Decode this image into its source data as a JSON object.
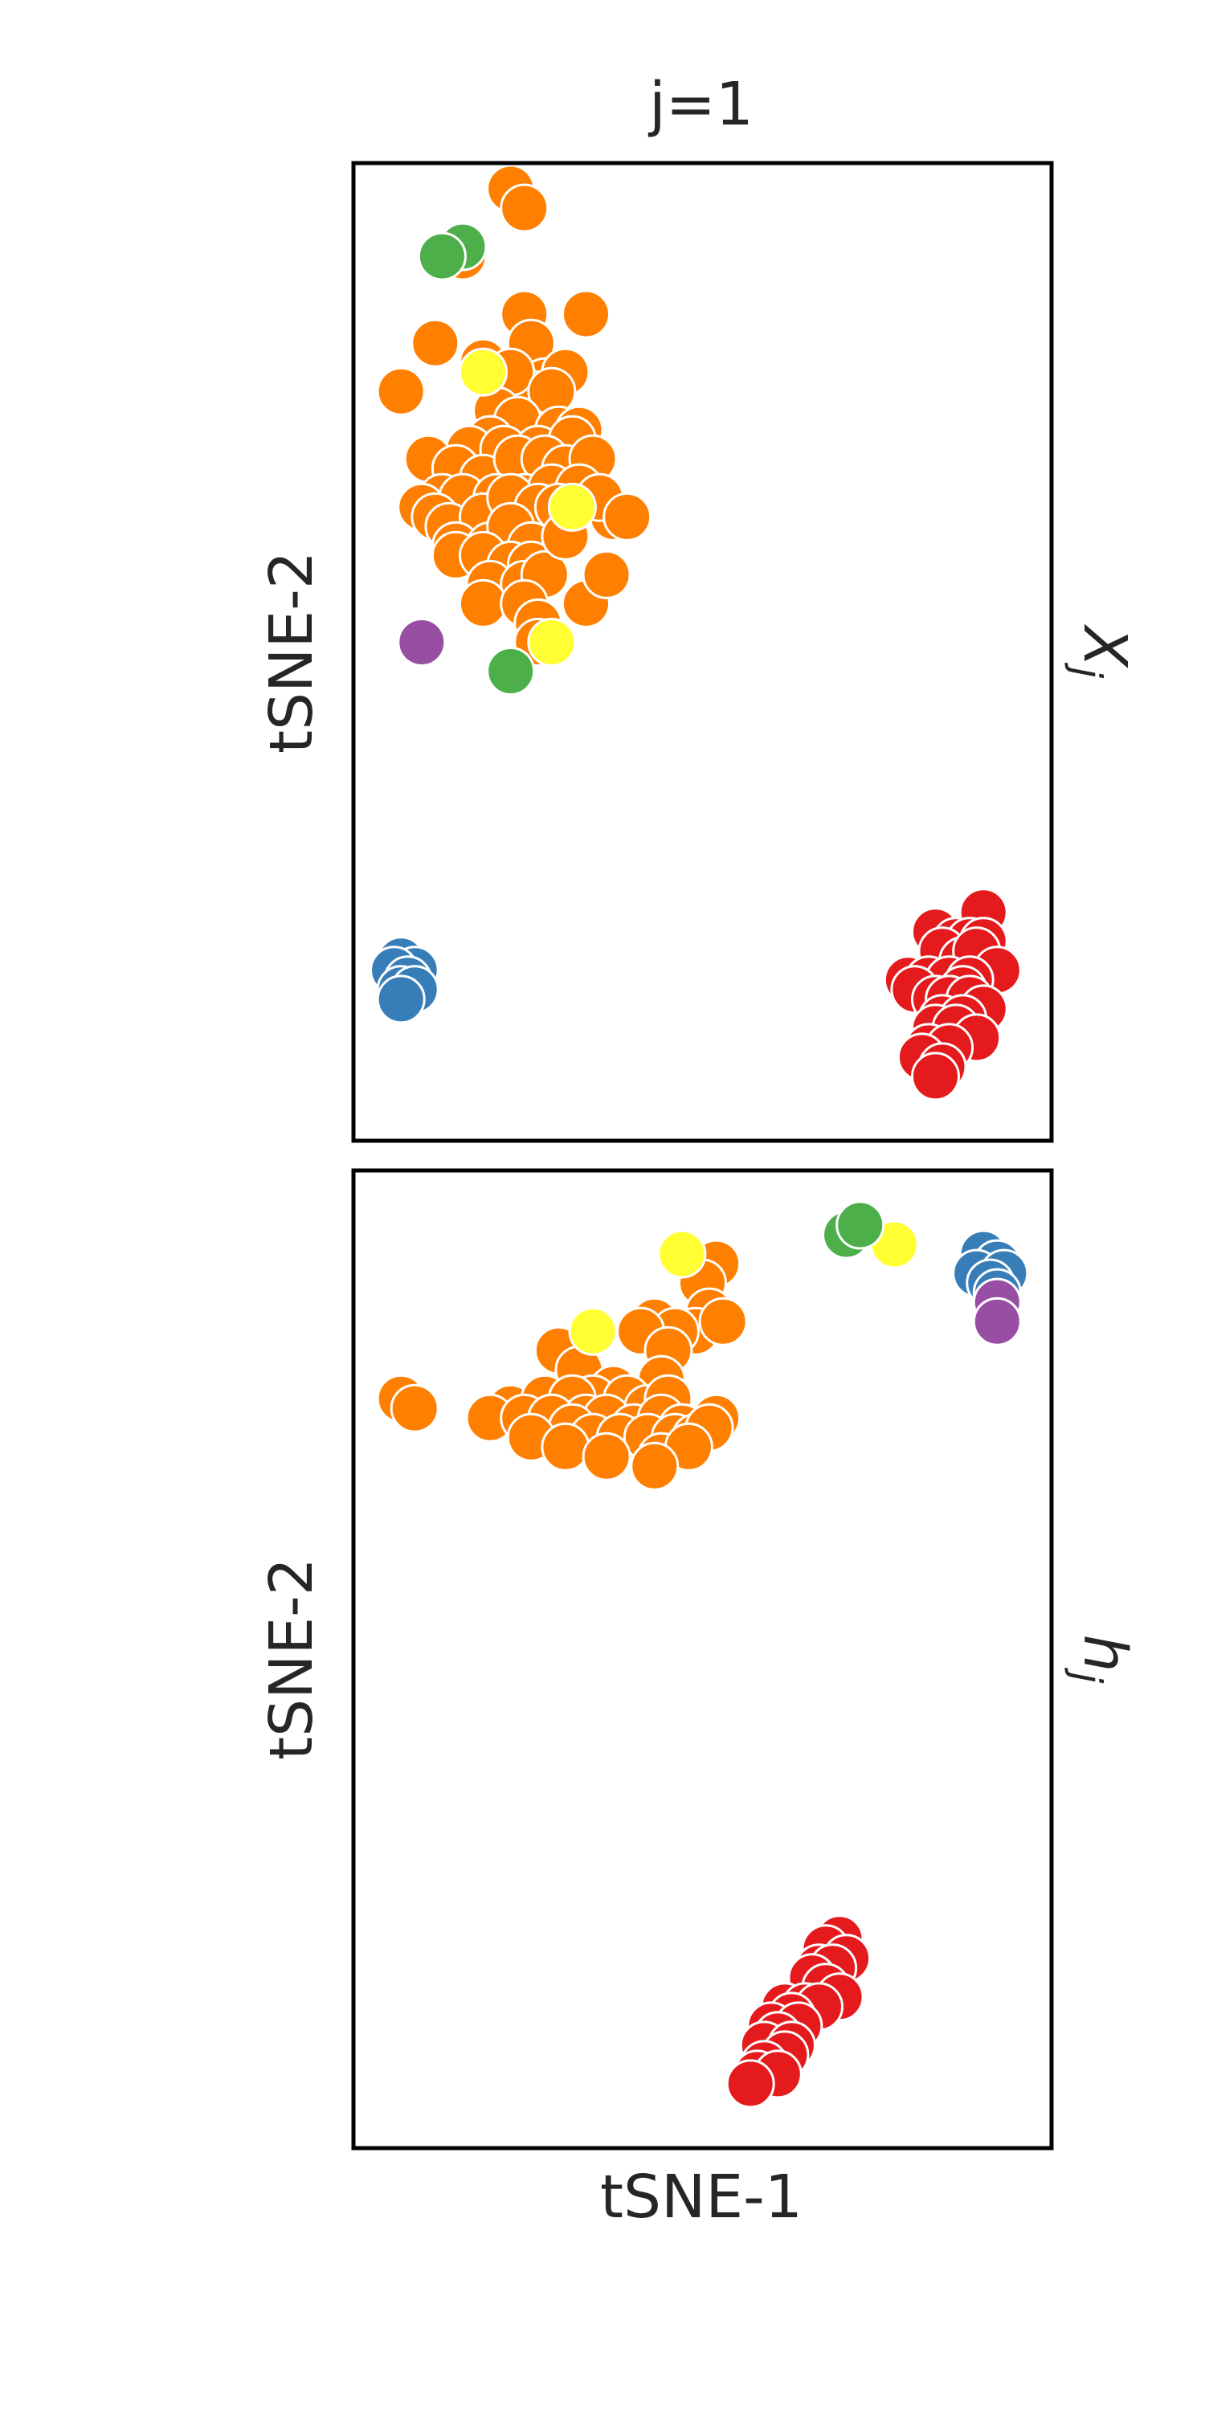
{
  "figure": {
    "title": "j=1",
    "xlabel": "tSNE-1"
  },
  "colors": {
    "blue": "#377eb8",
    "red": "#e41a1c",
    "orange": "#ff7f00",
    "green": "#4daf4a",
    "yellow": "#ffff33",
    "purple": "#984ea3"
  },
  "chart_data": [
    {
      "type": "scatter",
      "title": "j=1",
      "row_label": "X_j",
      "xlabel": "",
      "ylabel": "tSNE-2",
      "xticks": [],
      "yticks": [],
      "grid": false,
      "xlim": [
        0,
        100
      ],
      "ylim": [
        0,
        100
      ],
      "series": [
        {
          "color_key": "orange",
          "points": [
            [
              22,
              98
            ],
            [
              24,
              96
            ],
            [
              15,
              91
            ],
            [
              6,
              77
            ],
            [
              11,
              82
            ],
            [
              24,
              85
            ],
            [
              33,
              85
            ],
            [
              25,
              82
            ],
            [
              27,
              78
            ],
            [
              30,
              79
            ],
            [
              24,
              77
            ],
            [
              18,
              80
            ],
            [
              22,
              79
            ],
            [
              28,
              77
            ],
            [
              20,
              75
            ],
            [
              23,
              74
            ],
            [
              29,
              73
            ],
            [
              32,
              73
            ],
            [
              19,
              72
            ],
            [
              16,
              71
            ],
            [
              21,
              71
            ],
            [
              26,
              71
            ],
            [
              31,
              72
            ],
            [
              10,
              70
            ],
            [
              14,
              69
            ],
            [
              18,
              68
            ],
            [
              23,
              70
            ],
            [
              27,
              70
            ],
            [
              30,
              69
            ],
            [
              34,
              70
            ],
            [
              12,
              66
            ],
            [
              15,
              66
            ],
            [
              20,
              66
            ],
            [
              24,
              66
            ],
            [
              28,
              67
            ],
            [
              32,
              67
            ],
            [
              37,
              64
            ],
            [
              9,
              65
            ],
            [
              11,
              64
            ],
            [
              13,
              63
            ],
            [
              18,
              64
            ],
            [
              22,
              66
            ],
            [
              26,
              65
            ],
            [
              29,
              65
            ],
            [
              14,
              61
            ],
            [
              19,
              61
            ],
            [
              22,
              63
            ],
            [
              25,
              61
            ],
            [
              14,
              60
            ],
            [
              18,
              60
            ],
            [
              22,
              59
            ],
            [
              25,
              59
            ],
            [
              19,
              57
            ],
            [
              24,
              57
            ],
            [
              27,
              58
            ],
            [
              18,
              55
            ],
            [
              24,
              55
            ],
            [
              26,
              53
            ],
            [
              30,
              62
            ],
            [
              35,
              66
            ],
            [
              39,
              64
            ],
            [
              33,
              55
            ],
            [
              36,
              58
            ],
            [
              26,
              51
            ]
          ]
        },
        {
          "color_key": "yellow",
          "points": [
            [
              18,
              79
            ],
            [
              31,
              65
            ],
            [
              28,
              51
            ]
          ]
        },
        {
          "color_key": "green",
          "points": [
            [
              15,
              92
            ],
            [
              12,
              91
            ],
            [
              22,
              48
            ]
          ]
        },
        {
          "color_key": "purple",
          "points": [
            [
              9,
              51
            ]
          ]
        },
        {
          "color_key": "blue",
          "points": [
            [
              6,
              18
            ],
            [
              8,
              17
            ],
            [
              5,
              17
            ],
            [
              7,
              16
            ],
            [
              6,
              15
            ],
            [
              8,
              15
            ],
            [
              6,
              14
            ]
          ]
        },
        {
          "color_key": "red",
          "points": [
            [
              91,
              23
            ],
            [
              84,
              21
            ],
            [
              87,
              20
            ],
            [
              89,
              20
            ],
            [
              91,
              20
            ],
            [
              85,
              19
            ],
            [
              88,
              18
            ],
            [
              90,
              19
            ],
            [
              93,
              17
            ],
            [
              80,
              16
            ],
            [
              83,
              16
            ],
            [
              86,
              16
            ],
            [
              89,
              16
            ],
            [
              88,
              15
            ],
            [
              81,
              15
            ],
            [
              84,
              14
            ],
            [
              86,
              14
            ],
            [
              89,
              14
            ],
            [
              91,
              13
            ],
            [
              85,
              12
            ],
            [
              88,
              12
            ],
            [
              84,
              11
            ],
            [
              87,
              11
            ],
            [
              90,
              10
            ],
            [
              83,
              9
            ],
            [
              86,
              9
            ],
            [
              82,
              8
            ],
            [
              85,
              7
            ],
            [
              84,
              6
            ]
          ]
        }
      ]
    },
    {
      "type": "scatter",
      "row_label": "h_j",
      "xlabel": "tSNE-1",
      "ylabel": "tSNE-2",
      "xticks": [],
      "yticks": [],
      "grid": false,
      "xlim": [
        0,
        100
      ],
      "ylim": [
        0,
        100
      ],
      "series": [
        {
          "color_key": "orange",
          "points": [
            [
              52,
              91
            ],
            [
              50,
              89
            ],
            [
              51,
              86
            ],
            [
              49,
              84
            ],
            [
              53,
              85
            ],
            [
              43,
              85
            ],
            [
              46,
              84
            ],
            [
              41,
              84
            ],
            [
              45,
              82
            ],
            [
              29,
              82
            ],
            [
              32,
              80
            ],
            [
              37,
              78
            ],
            [
              44,
              79
            ],
            [
              34,
              77
            ],
            [
              39,
              77
            ],
            [
              42,
              76
            ],
            [
              45,
              77
            ],
            [
              6,
              77
            ],
            [
              8,
              76
            ],
            [
              22,
              76
            ],
            [
              27,
              77
            ],
            [
              31,
              77
            ],
            [
              33,
              75
            ],
            [
              36,
              75
            ],
            [
              40,
              74
            ],
            [
              44,
              75
            ],
            [
              47,
              74
            ],
            [
              52,
              75
            ],
            [
              19,
              75
            ],
            [
              24,
              75
            ],
            [
              28,
              75
            ],
            [
              31,
              74
            ],
            [
              34,
              73
            ],
            [
              38,
              73
            ],
            [
              42,
              73
            ],
            [
              46,
              73
            ],
            [
              49,
              73
            ],
            [
              51,
              74
            ],
            [
              25,
              73
            ],
            [
              30,
              72
            ],
            [
              36,
              71
            ],
            [
              44,
              71
            ],
            [
              48,
              72
            ],
            [
              43,
              70
            ]
          ]
        },
        {
          "color_key": "yellow",
          "points": [
            [
              47,
              92
            ],
            [
              34,
              84
            ],
            [
              78,
              93
            ]
          ]
        },
        {
          "color_key": "green",
          "points": [
            [
              71,
              94
            ],
            [
              73,
              95
            ]
          ]
        },
        {
          "color_key": "blue",
          "points": [
            [
              91,
              92
            ],
            [
              93,
              91
            ],
            [
              90,
              90
            ],
            [
              94,
              90
            ],
            [
              92,
              89
            ],
            [
              93,
              88
            ]
          ]
        },
        {
          "color_key": "purple",
          "points": [
            [
              93,
              87
            ],
            [
              93,
              85
            ]
          ]
        },
        {
          "color_key": "red",
          "points": [
            [
              70,
              21
            ],
            [
              68,
              20
            ],
            [
              71,
              19
            ],
            [
              67,
              18
            ],
            [
              69,
              18
            ],
            [
              66,
              17
            ],
            [
              68,
              16
            ],
            [
              70,
              15
            ],
            [
              62,
              14
            ],
            [
              65,
              14
            ],
            [
              67,
              14
            ],
            [
              63,
              13
            ],
            [
              60,
              12
            ],
            [
              64,
              12
            ],
            [
              61,
              11
            ],
            [
              59,
              10
            ],
            [
              63,
              10
            ],
            [
              62,
              9
            ],
            [
              59,
              8
            ],
            [
              58,
              7
            ],
            [
              61,
              7
            ],
            [
              57,
              6
            ]
          ]
        }
      ]
    }
  ]
}
